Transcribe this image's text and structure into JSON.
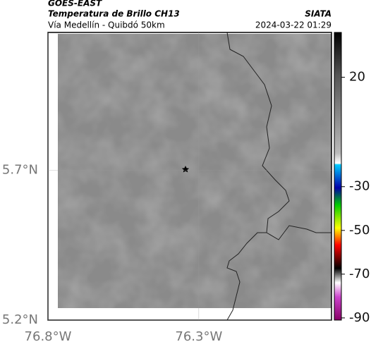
{
  "header": {
    "source": "GOES-EAST",
    "title": "Temperatura de Brillo CH13",
    "subtitle": "Vía Medellín - Quibdó 50km",
    "org": "SIATA",
    "datetime": "2024-03-22 01:29"
  },
  "map": {
    "xlim": [
      -76.8,
      -75.86
    ],
    "ylim": [
      5.2,
      6.16
    ],
    "xticks": [
      {
        "value": -76.8,
        "label": "76.8°W"
      },
      {
        "value": -76.3,
        "label": "76.3°W"
      }
    ],
    "yticks": [
      {
        "value": 5.2,
        "label": "5.2°N"
      },
      {
        "value": 5.7,
        "label": "5.7°N"
      }
    ],
    "grid": true
  },
  "colorbar": {
    "lim": [
      -91,
      40.5
    ],
    "ticks": [
      20,
      -30,
      -50,
      -70,
      -90
    ]
  }
}
